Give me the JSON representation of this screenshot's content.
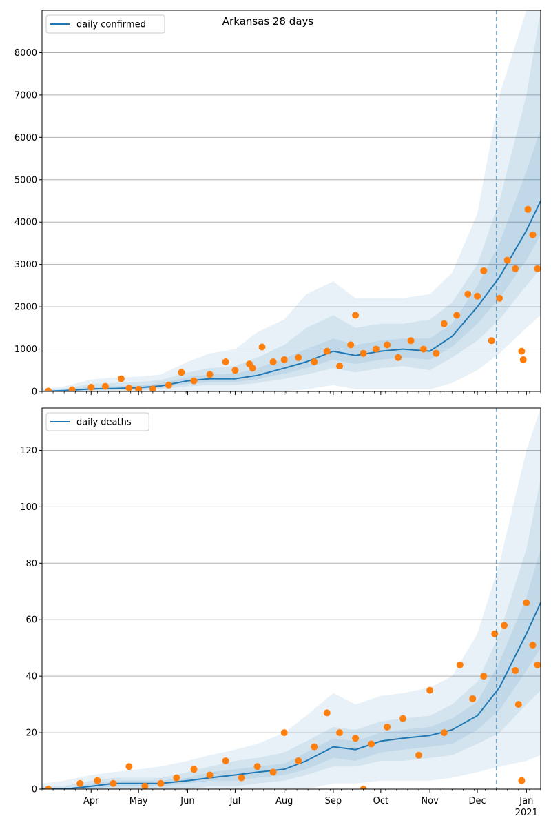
{
  "colors": {
    "line": "#1f77b4",
    "points": "#ff7f0e",
    "band": "#1f77b4",
    "grid": "#b0b0b0",
    "forecast_line": "#1f77b4"
  },
  "x_months": [
    {
      "label": "Apr",
      "date": "2020-04-01"
    },
    {
      "label": "May",
      "date": "2020-05-01"
    },
    {
      "label": "Jun",
      "date": "2020-06-01"
    },
    {
      "label": "Jul",
      "date": "2020-07-01"
    },
    {
      "label": "Aug",
      "date": "2020-08-01"
    },
    {
      "label": "Sep",
      "date": "2020-09-01"
    },
    {
      "label": "Oct",
      "date": "2020-10-01"
    },
    {
      "label": "Nov",
      "date": "2020-11-01"
    },
    {
      "label": "Dec",
      "date": "2020-12-01"
    },
    {
      "label": "Jan",
      "date": "2021-01-01"
    }
  ],
  "year_label": "2021",
  "chart_data": [
    {
      "type": "line",
      "title": "Arkansas 28 days",
      "legend": {
        "label": "daily confirmed",
        "placement": "top-left"
      },
      "xlim": [
        "2020-03-01",
        "2021-01-10"
      ],
      "ylim": [
        0,
        9000
      ],
      "yticks": [
        0,
        1000,
        2000,
        3000,
        4000,
        5000,
        6000,
        7000,
        8000
      ],
      "grid": "horizontal",
      "forecast_start": "2020-12-13",
      "line": {
        "x": [
          "2020-03-01",
          "2020-03-15",
          "2020-04-01",
          "2020-04-15",
          "2020-05-01",
          "2020-05-15",
          "2020-06-01",
          "2020-06-15",
          "2020-07-01",
          "2020-07-15",
          "2020-08-01",
          "2020-08-15",
          "2020-09-01",
          "2020-09-15",
          "2020-10-01",
          "2020-10-15",
          "2020-11-01",
          "2020-11-15",
          "2020-12-01",
          "2020-12-15",
          "2021-01-01",
          "2021-01-10"
        ],
        "y": [
          0,
          20,
          60,
          70,
          90,
          130,
          250,
          300,
          300,
          380,
          550,
          700,
          950,
          850,
          950,
          1000,
          950,
          1300,
          2000,
          2700,
          3800,
          4500
        ]
      },
      "bands": [
        {
          "lower": [
            0,
            0,
            0,
            0,
            0,
            0,
            0,
            0,
            0,
            0,
            0,
            50,
            150,
            50,
            50,
            50,
            50,
            200,
            500,
            900,
            1500,
            1800
          ],
          "upper": [
            60,
            120,
            280,
            330,
            350,
            400,
            700,
            900,
            1000,
            1400,
            1700,
            2300,
            2600,
            2200,
            2200,
            2200,
            2300,
            2800,
            4200,
            7000,
            9000,
            9000
          ]
        },
        {
          "lower": [
            0,
            0,
            0,
            20,
            30,
            50,
            120,
            150,
            150,
            200,
            300,
            400,
            550,
            450,
            550,
            600,
            500,
            800,
            1200,
            1700,
            2500,
            2900
          ],
          "upper": [
            30,
            70,
            180,
            200,
            220,
            270,
            450,
            550,
            600,
            800,
            1100,
            1500,
            1800,
            1500,
            1600,
            1600,
            1700,
            2100,
            3000,
            4500,
            7000,
            9000
          ]
        },
        {
          "lower": [
            0,
            5,
            30,
            45,
            60,
            90,
            180,
            220,
            220,
            290,
            420,
            550,
            750,
            650,
            750,
            800,
            750,
            1050,
            1600,
            2200,
            3100,
            3700
          ],
          "upper": [
            15,
            40,
            110,
            120,
            140,
            190,
            340,
            400,
            420,
            550,
            780,
            1000,
            1250,
            1100,
            1200,
            1250,
            1250,
            1600,
            2500,
            3500,
            5200,
            6200
          ]
        }
      ],
      "points": {
        "x": [
          "2020-03-05",
          "2020-03-20",
          "2020-04-01",
          "2020-04-10",
          "2020-04-20",
          "2020-04-25",
          "2020-05-01",
          "2020-05-10",
          "2020-05-20",
          "2020-05-28",
          "2020-06-05",
          "2020-06-15",
          "2020-06-25",
          "2020-07-01",
          "2020-07-10",
          "2020-07-18",
          "2020-07-25",
          "2020-08-01",
          "2020-08-10",
          "2020-08-20",
          "2020-08-28",
          "2020-09-05",
          "2020-09-12",
          "2020-09-20",
          "2020-09-28",
          "2020-10-05",
          "2020-10-12",
          "2020-10-20",
          "2020-10-28",
          "2020-11-05",
          "2020-11-10",
          "2020-11-18",
          "2020-11-25",
          "2020-12-01",
          "2020-12-05",
          "2020-12-10",
          "2020-12-15",
          "2020-12-20",
          "2020-12-25",
          "2020-12-29",
          "2021-01-02",
          "2021-01-05",
          "2021-01-08",
          "2020-09-15",
          "2020-07-12",
          "2020-12-30"
        ],
        "y": [
          10,
          40,
          100,
          120,
          300,
          80,
          50,
          60,
          150,
          450,
          250,
          400,
          700,
          500,
          650,
          1050,
          700,
          750,
          800,
          700,
          950,
          600,
          1100,
          900,
          1000,
          1100,
          800,
          1200,
          1000,
          900,
          1600,
          1800,
          2300,
          2250,
          2850,
          1200,
          2200,
          3100,
          2900,
          950,
          4300,
          3700,
          2900,
          1800,
          550,
          750
        ]
      }
    },
    {
      "type": "line",
      "title": "",
      "legend": {
        "label": "daily deaths",
        "placement": "top-left"
      },
      "xlim": [
        "2020-03-01",
        "2021-01-10"
      ],
      "ylim": [
        0,
        135
      ],
      "yticks": [
        0,
        20,
        40,
        60,
        80,
        100,
        120
      ],
      "grid": "horizontal",
      "forecast_start": "2020-12-13",
      "line": {
        "x": [
          "2020-03-01",
          "2020-03-15",
          "2020-04-01",
          "2020-04-15",
          "2020-05-01",
          "2020-05-15",
          "2020-06-01",
          "2020-06-15",
          "2020-07-01",
          "2020-07-15",
          "2020-08-01",
          "2020-08-15",
          "2020-09-01",
          "2020-09-15",
          "2020-10-01",
          "2020-10-15",
          "2020-11-01",
          "2020-11-15",
          "2020-12-01",
          "2020-12-15",
          "2021-01-01",
          "2021-01-10"
        ],
        "y": [
          0,
          0,
          1,
          2,
          2,
          2,
          3,
          4,
          5,
          6,
          7,
          10,
          15,
          14,
          17,
          18,
          19,
          21,
          26,
          36,
          55,
          66
        ]
      },
      "bands": [
        {
          "lower": [
            0,
            0,
            0,
            0,
            0,
            0,
            0,
            0,
            0,
            0,
            0,
            0,
            2,
            2,
            3,
            3,
            3,
            4,
            6,
            8,
            10,
            12
          ],
          "upper": [
            2,
            3,
            5,
            6,
            7,
            8,
            10,
            12,
            14,
            16,
            20,
            26,
            34,
            30,
            33,
            34,
            36,
            40,
            55,
            80,
            120,
            135
          ]
        },
        {
          "lower": [
            0,
            0,
            0,
            0,
            0,
            0,
            0,
            1,
            1,
            2,
            3,
            5,
            8,
            8,
            10,
            10,
            11,
            12,
            16,
            20,
            30,
            35
          ],
          "upper": [
            1,
            1,
            3,
            4,
            4,
            4,
            6,
            8,
            10,
            11,
            13,
            17,
            22,
            21,
            24,
            25,
            26,
            30,
            38,
            55,
            85,
            110
          ]
        },
        {
          "lower": [
            0,
            0,
            0,
            1,
            1,
            1,
            2,
            3,
            3,
            4,
            5,
            7,
            11,
            10,
            13,
            14,
            15,
            16,
            21,
            28,
            42,
            50
          ],
          "upper": [
            0,
            0,
            2,
            3,
            3,
            3,
            4,
            6,
            7,
            8,
            9,
            13,
            18,
            17,
            20,
            21,
            22,
            25,
            31,
            45,
            68,
            85
          ]
        }
      ],
      "points": {
        "x": [
          "2020-03-05",
          "2020-03-25",
          "2020-04-05",
          "2020-04-15",
          "2020-04-25",
          "2020-05-05",
          "2020-05-15",
          "2020-05-25",
          "2020-06-05",
          "2020-06-15",
          "2020-06-25",
          "2020-07-05",
          "2020-07-15",
          "2020-07-25",
          "2020-08-01",
          "2020-08-10",
          "2020-08-20",
          "2020-08-28",
          "2020-09-05",
          "2020-09-15",
          "2020-09-25",
          "2020-10-05",
          "2020-10-15",
          "2020-10-25",
          "2020-11-01",
          "2020-11-10",
          "2020-11-20",
          "2020-11-28",
          "2020-12-05",
          "2020-12-12",
          "2020-12-18",
          "2020-12-25",
          "2020-12-29",
          "2021-01-01",
          "2021-01-05",
          "2021-01-08",
          "2020-09-20",
          "2020-12-27"
        ],
        "y": [
          0,
          2,
          3,
          2,
          8,
          1,
          2,
          4,
          7,
          5,
          10,
          4,
          8,
          6,
          20,
          10,
          15,
          27,
          20,
          18,
          16,
          22,
          25,
          12,
          35,
          20,
          44,
          32,
          40,
          55,
          58,
          42,
          3,
          66,
          51,
          44,
          0,
          30
        ]
      }
    }
  ]
}
